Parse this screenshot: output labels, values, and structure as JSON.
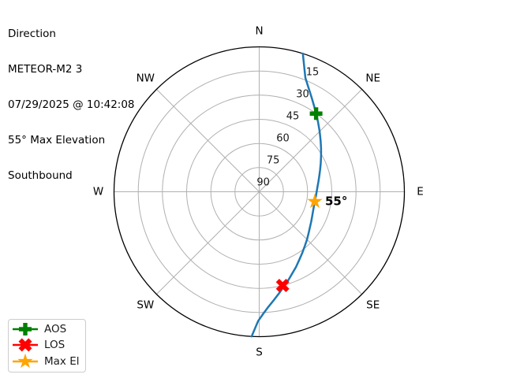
{
  "header": {
    "lines": [
      "Direction",
      "METEOR-M2 3",
      "07/29/2025 @ 10:42:08",
      "55° Max Elevation",
      "Southbound"
    ]
  },
  "chart_data": {
    "type": "line",
    "projection": "polar-azimuth-elevation",
    "title": "Direction",
    "satellite": "METEOR-M2 3",
    "timestamp": "07/29/2025 @ 10:42:08",
    "max_elevation_text": "55° Max Elevation",
    "pass_direction": "Southbound",
    "compass_labels": [
      "N",
      "NE",
      "E",
      "SE",
      "S",
      "SW",
      "W",
      "NW"
    ],
    "elevation_rings_deg": [
      15,
      30,
      45,
      60,
      75
    ],
    "elevation_tick_labels": [
      "15",
      "30",
      "45",
      "60",
      "75",
      "90"
    ],
    "grid_color": "#b0b0b0",
    "outline_color": "#000000",
    "track": {
      "color": "#1f77b4",
      "points_az_el": [
        [
          17.5,
          0
        ],
        [
          22,
          13.6
        ],
        [
          25,
          18.1
        ],
        [
          29,
          23.0
        ],
        [
          32.5,
          26.7
        ],
        [
          36,
          30.0
        ],
        [
          40,
          33.3
        ],
        [
          45,
          37.0
        ],
        [
          50,
          40.3
        ],
        [
          55,
          43.2
        ],
        [
          60,
          45.7
        ],
        [
          65,
          47.9
        ],
        [
          70,
          49.8
        ],
        [
          75,
          51.4
        ],
        [
          80,
          52.7
        ],
        [
          85,
          53.7
        ],
        [
          90,
          54.4
        ],
        [
          95,
          54.8
        ],
        [
          100,
          55.0
        ],
        [
          105,
          54.9
        ],
        [
          110,
          54.5
        ],
        [
          115,
          53.8
        ],
        [
          120,
          52.8
        ],
        [
          125,
          51.6
        ],
        [
          130,
          50.0
        ],
        [
          135,
          48.1
        ],
        [
          140,
          46.0
        ],
        [
          145,
          43.5
        ],
        [
          150,
          40.7
        ],
        [
          154,
          38.0
        ],
        [
          157.5,
          35.7
        ],
        [
          161,
          32.9
        ],
        [
          165,
          29.6
        ],
        [
          169,
          25.7
        ],
        [
          172.5,
          21.9
        ],
        [
          175.5,
          18.2
        ],
        [
          178,
          14.4
        ],
        [
          180.5,
          9.7
        ],
        [
          183,
          0
        ]
      ]
    },
    "markers": [
      {
        "id": "aos",
        "label": "AOS",
        "shape": "filled-plus",
        "color": "#008000",
        "az_deg": 36,
        "el_deg": 30
      },
      {
        "id": "los",
        "label": "LOS",
        "shape": "filled-x",
        "color": "#ff0000",
        "az_deg": 166,
        "el_deg": 30
      },
      {
        "id": "max-el",
        "label": "Max El",
        "shape": "star",
        "color": "#ffa500",
        "az_deg": 100,
        "el_deg": 55,
        "annotation": "55°"
      }
    ]
  },
  "legend": {
    "items": [
      {
        "label": "AOS",
        "shape": "filled-plus",
        "color": "#008000"
      },
      {
        "label": "LOS",
        "shape": "filled-x",
        "color": "#ff0000"
      },
      {
        "label": "Max El",
        "shape": "star",
        "color": "#ffa500"
      }
    ]
  }
}
